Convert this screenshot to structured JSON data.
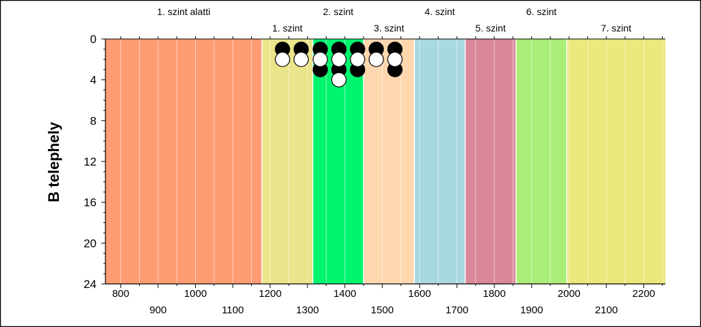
{
  "chart_data": {
    "type": "scatter",
    "title": "",
    "ylabel": "B telephely",
    "xlabel": "",
    "xlim": [
      759,
      2258
    ],
    "ylim": [
      0,
      24
    ],
    "y_inverted": true,
    "y_ticks": [
      0,
      4,
      8,
      12,
      16,
      20,
      24
    ],
    "x_ticks_row1": [
      800,
      1000,
      1200,
      1400,
      1600,
      1800,
      2000,
      2200
    ],
    "x_ticks_row2": [
      900,
      1100,
      1300,
      1500,
      1700,
      1900,
      2100
    ],
    "grid": "vertical minor lines every 50 units",
    "bands": [
      {
        "label": "1. szint alatti",
        "label_row": "top",
        "x_start": 759,
        "x_end": 1178,
        "color": "#FD9C72"
      },
      {
        "label": "1. szint",
        "label_row": "bottom",
        "x_start": 1178,
        "x_end": 1314,
        "color": "#EAE48A"
      },
      {
        "label": "2. szint",
        "label_row": "top",
        "x_start": 1314,
        "x_end": 1450,
        "color": "#00F56E"
      },
      {
        "label": "3. szint",
        "label_row": "bottom",
        "x_start": 1450,
        "x_end": 1586,
        "color": "#FFD7AF"
      },
      {
        "label": "4. szint",
        "label_row": "top",
        "x_start": 1586,
        "x_end": 1722,
        "color": "#A8D8E2"
      },
      {
        "label": "5. szint",
        "label_row": "bottom",
        "x_start": 1722,
        "x_end": 1858,
        "color": "#DA8799"
      },
      {
        "label": "6. szint",
        "label_row": "top",
        "x_start": 1858,
        "x_end": 1994,
        "color": "#AAEE77"
      },
      {
        "label": "7. szint",
        "label_row": "bottom",
        "x_start": 1994,
        "x_end": 2258,
        "color": "#EBE87C"
      }
    ],
    "series": [
      {
        "marker": "filled-black",
        "color": "#000000",
        "points": [
          {
            "x": 1233,
            "y": 1
          },
          {
            "x": 1283,
            "y": 1
          },
          {
            "x": 1334,
            "y": 1
          },
          {
            "x": 1384,
            "y": 1
          },
          {
            "x": 1434,
            "y": 1
          },
          {
            "x": 1484,
            "y": 1
          },
          {
            "x": 1534,
            "y": 1
          },
          {
            "x": 1334,
            "y": 3
          },
          {
            "x": 1384,
            "y": 3
          },
          {
            "x": 1434,
            "y": 3
          },
          {
            "x": 1534,
            "y": 3
          }
        ]
      },
      {
        "marker": "open-white",
        "color": "#ffffff",
        "points": [
          {
            "x": 1233,
            "y": 2
          },
          {
            "x": 1283,
            "y": 2
          },
          {
            "x": 1334,
            "y": 2
          },
          {
            "x": 1384,
            "y": 2
          },
          {
            "x": 1434,
            "y": 2
          },
          {
            "x": 1484,
            "y": 2
          },
          {
            "x": 1534,
            "y": 2
          },
          {
            "x": 1384,
            "y": 4
          }
        ]
      }
    ]
  }
}
